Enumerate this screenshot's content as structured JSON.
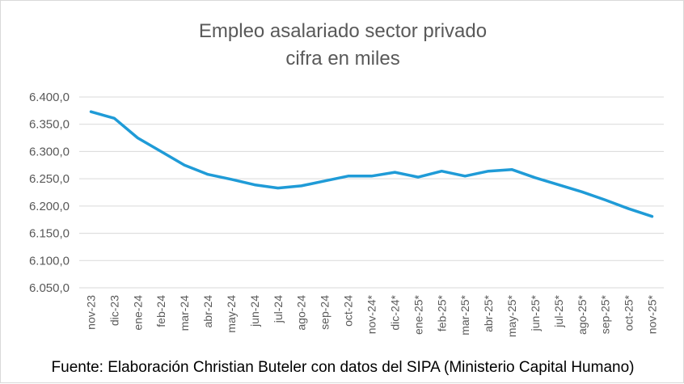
{
  "chart_data": {
    "type": "line",
    "title_lines": [
      "Empleo asalariado sector privado",
      "cifra en miles"
    ],
    "xlabel": "",
    "ylabel": "",
    "categories": [
      "nov-23",
      "dic-23",
      "ene-24",
      "feb-24",
      "mar-24",
      "abr-24",
      "may-24",
      "jun-24",
      "jul-24",
      "ago-24",
      "sep-24",
      "oct-24",
      "nov-24*",
      "dic-24*",
      "ene-25*",
      "feb-25*",
      "mar-25*",
      "abr-25*",
      "may-25*",
      "jun-25*",
      "jul-25*",
      "ago-25*",
      "sep-25*",
      "oct-25*",
      "nov-25*"
    ],
    "series": [
      {
        "values": [
          6373,
          6361,
          6325,
          6300,
          6275,
          6258,
          6249,
          6239,
          6233,
          6237,
          6246,
          6255,
          6255,
          6262,
          6253,
          6264,
          6255,
          6264,
          6267,
          6252,
          6239,
          6226,
          6211,
          6195,
          6181
        ]
      }
    ],
    "ylim": [
      6050,
      6400
    ],
    "yticks": [
      6050,
      6100,
      6150,
      6200,
      6250,
      6300,
      6350,
      6400
    ],
    "ytick_labels": [
      "6.050,0",
      "6.100,0",
      "6.150,0",
      "6.200,0",
      "6.250,0",
      "6.300,0",
      "6.350,0",
      "6.400,0"
    ],
    "grid": true,
    "legend": "none",
    "colors": {
      "line": "#1f9bd7",
      "grid": "#d9d9d9",
      "text": "#595959"
    }
  },
  "source_note": "Fuente: Elaboración Christian Buteler con datos del SIPA (Ministerio Capital Humano)"
}
